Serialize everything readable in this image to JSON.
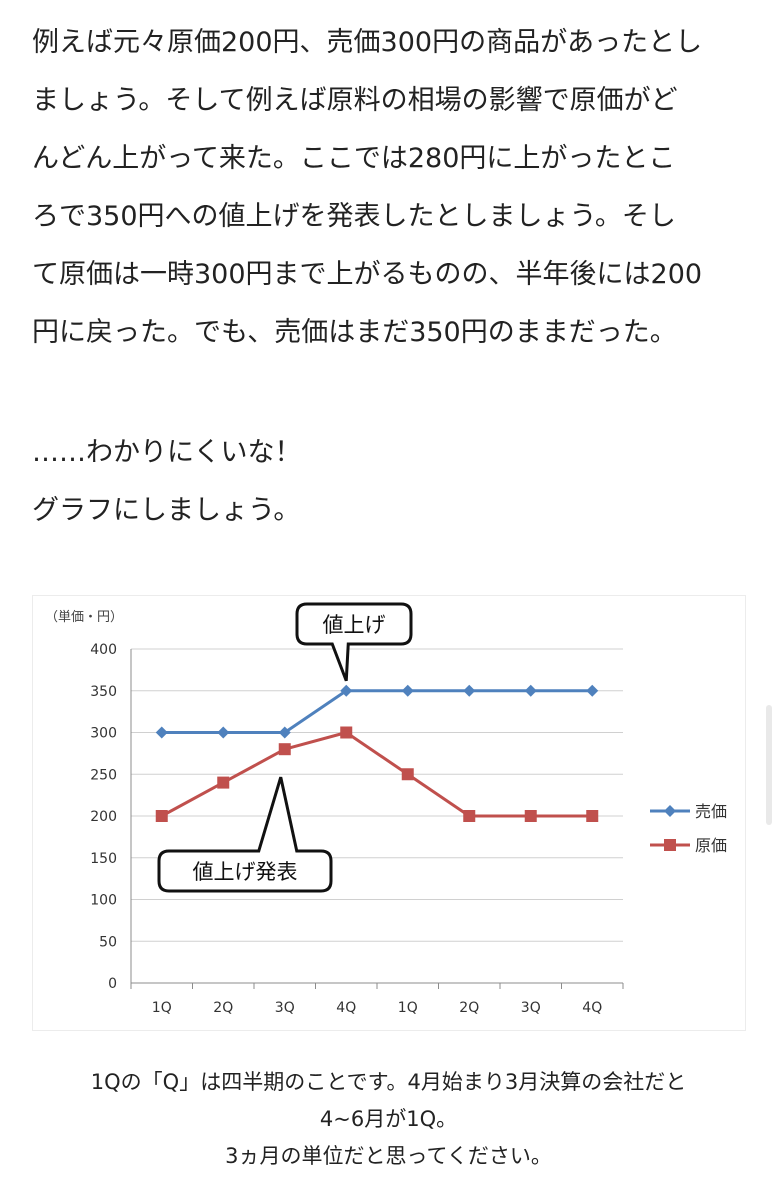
{
  "paragraph1": [
    "例えば元々原価200円、売価300円の商品があったとし",
    "ましょう。そして例えば原料の相場の影響で原価がど",
    "んどん上がって来た。ここでは280円に上がったとこ",
    "ろで350円への値上げを発表したとしましょう。そし",
    "て原価は一時300円まで上がるものの、半年後には200",
    "円に戻った。でも、売価はまだ350円のままだった。"
  ],
  "paragraph2": [
    "……わかりにくいな！",
    "グラフにしましょう。"
  ],
  "chart_data": {
    "type": "line",
    "unit_label": "（単価・円）",
    "categories": [
      "1Q",
      "2Q",
      "3Q",
      "4Q",
      "1Q",
      "2Q",
      "3Q",
      "4Q"
    ],
    "ylim": [
      0,
      400
    ],
    "yticks": [
      0,
      50,
      100,
      150,
      200,
      250,
      300,
      350,
      400
    ],
    "grid": true,
    "legend_position": "right",
    "series": [
      {
        "name": "売価",
        "values": [
          300,
          300,
          300,
          350,
          350,
          350,
          350,
          350
        ],
        "color": "#4F81BD",
        "marker": "diamond"
      },
      {
        "name": "原価",
        "values": [
          200,
          240,
          280,
          300,
          250,
          200,
          200,
          200
        ],
        "color": "#C0504D",
        "marker": "square"
      }
    ],
    "annotations": [
      {
        "text": "値上げ",
        "category_index": 3,
        "series": "売価"
      },
      {
        "text": "値上げ発表",
        "category_index": 2,
        "series": "原価"
      }
    ]
  },
  "caption": [
    "1Qの「Q」は四半期のことです。4月始まり3月決算の会社だと",
    "4~6月が1Q。",
    "3ヵ月の単位だと思ってください。"
  ]
}
